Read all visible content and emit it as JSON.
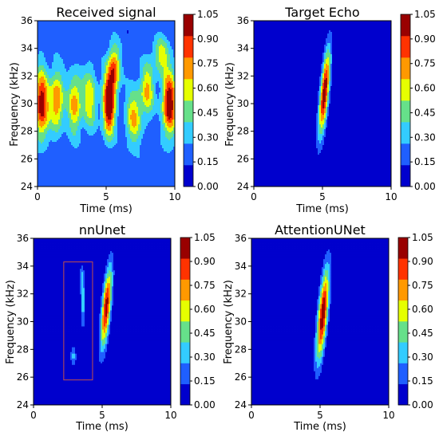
{
  "chart_data": [
    {
      "type": "heatmap",
      "title": "Received signal",
      "xlabel": "Time (ms)",
      "ylabel": "Frequency (kHz)",
      "xlim": [
        0,
        10
      ],
      "ylim": [
        24,
        36
      ],
      "xticks": [
        "0",
        "5",
        "10"
      ],
      "yticks": [
        "24",
        "26",
        "28",
        "30",
        "32",
        "34",
        "36"
      ],
      "colorbar": {
        "vmin": 0,
        "vmax": 1.05,
        "ticks": [
          "0.00",
          "0.15",
          "0.30",
          "0.45",
          "0.60",
          "0.75",
          "0.90",
          "1.05"
        ]
      },
      "blobs": [
        {
          "t": 0.3,
          "f": 30.0,
          "amp": 0.85,
          "st": 0.35,
          "sf": 1.7
        },
        {
          "t": 1.4,
          "f": 30.2,
          "amp": 0.62,
          "st": 0.35,
          "sf": 1.5
        },
        {
          "t": 2.7,
          "f": 30.0,
          "amp": 0.55,
          "st": 0.35,
          "sf": 1.5
        },
        {
          "t": 3.8,
          "f": 30.4,
          "amp": 0.45,
          "st": 0.35,
          "sf": 1.6
        },
        {
          "t": 5.2,
          "f": 30.0,
          "amp": 1.0,
          "st": 0.3,
          "sf": 1.6
        },
        {
          "t": 5.6,
          "f": 32.5,
          "amp": 0.6,
          "st": 0.3,
          "sf": 1.2
        },
        {
          "t": 7.0,
          "f": 29.0,
          "amp": 0.5,
          "st": 0.4,
          "sf": 1.4
        },
        {
          "t": 8.0,
          "f": 31.0,
          "amp": 0.5,
          "st": 0.35,
          "sf": 1.3
        },
        {
          "t": 9.6,
          "f": 30.0,
          "amp": 0.92,
          "st": 0.35,
          "sf": 1.6
        },
        {
          "t": 9.0,
          "f": 33.5,
          "amp": 0.4,
          "st": 0.4,
          "sf": 0.9
        }
      ],
      "background": 0.18,
      "rect": null
    },
    {
      "type": "heatmap",
      "title": "Target Echo",
      "xlabel": "Time (ms)",
      "ylabel": "Frequency (kHz)",
      "xlim": [
        0,
        10
      ],
      "ylim": [
        24,
        36
      ],
      "xticks": [
        "0",
        "5",
        "10"
      ],
      "yticks": [
        "24",
        "26",
        "28",
        "30",
        "32",
        "34",
        "36"
      ],
      "colorbar": {
        "vmin": 0,
        "vmax": 1.05,
        "ticks": [
          "0.00",
          "0.15",
          "0.30",
          "0.45",
          "0.60",
          "0.75",
          "0.90",
          "1.05"
        ]
      },
      "blobs": [
        {
          "t": 5.15,
          "f": 30.8,
          "amp": 1.05,
          "st": 0.22,
          "sf": 2.2,
          "slope": 0.09
        }
      ],
      "background": 0.0,
      "rect": null
    },
    {
      "type": "heatmap",
      "title": "nnUnet",
      "xlabel": "Time (ms)",
      "ylabel": "Frequency (kHz)",
      "xlim": [
        0,
        10
      ],
      "ylim": [
        24,
        36
      ],
      "xticks": [
        "0",
        "5",
        "10"
      ],
      "yticks": [
        "24",
        "26",
        "28",
        "30",
        "32",
        "34",
        "36"
      ],
      "colorbar": {
        "vmin": 0,
        "vmax": 1.05,
        "ticks": [
          "0.00",
          "0.15",
          "0.30",
          "0.45",
          "0.60",
          "0.75",
          "0.90",
          "1.05"
        ]
      },
      "blobs": [
        {
          "t": 5.3,
          "f": 31.0,
          "amp": 1.0,
          "st": 0.22,
          "sf": 2.0,
          "slope": 0.09
        },
        {
          "t": 3.6,
          "f": 31.5,
          "amp": 0.35,
          "st": 0.12,
          "sf": 1.4
        },
        {
          "t": 2.9,
          "f": 27.5,
          "amp": 0.3,
          "st": 0.15,
          "sf": 0.5
        },
        {
          "t": 3.5,
          "f": 33.2,
          "amp": 0.25,
          "st": 0.1,
          "sf": 0.5
        }
      ],
      "background": 0.0,
      "rect": {
        "t0": 2.2,
        "t1": 4.3,
        "f0": 25.8,
        "f1": 34.3
      }
    },
    {
      "type": "heatmap",
      "title": "AttentionUNet",
      "xlabel": "Time (ms)",
      "ylabel": "Frequency (kHz)",
      "xlim": [
        0,
        10
      ],
      "ylim": [
        24,
        36
      ],
      "xticks": [
        "0",
        "5",
        "10"
      ],
      "yticks": [
        "24",
        "26",
        "28",
        "30",
        "32",
        "34",
        "36"
      ],
      "colorbar": {
        "vmin": 0,
        "vmax": 1.05,
        "ticks": [
          "0.00",
          "0.15",
          "0.30",
          "0.45",
          "0.60",
          "0.75",
          "0.90",
          "1.05"
        ]
      },
      "blobs": [
        {
          "t": 5.2,
          "f": 30.5,
          "amp": 1.05,
          "st": 0.24,
          "sf": 2.3,
          "slope": 0.09
        }
      ],
      "background": 0.0,
      "rect": null
    }
  ],
  "colors": {
    "levels": [
      "#0000cd",
      "#1f5fff",
      "#33ccff",
      "#66e08a",
      "#e6ff00",
      "#ff9900",
      "#ff3300",
      "#990000"
    ],
    "rect": "#c0504d"
  }
}
